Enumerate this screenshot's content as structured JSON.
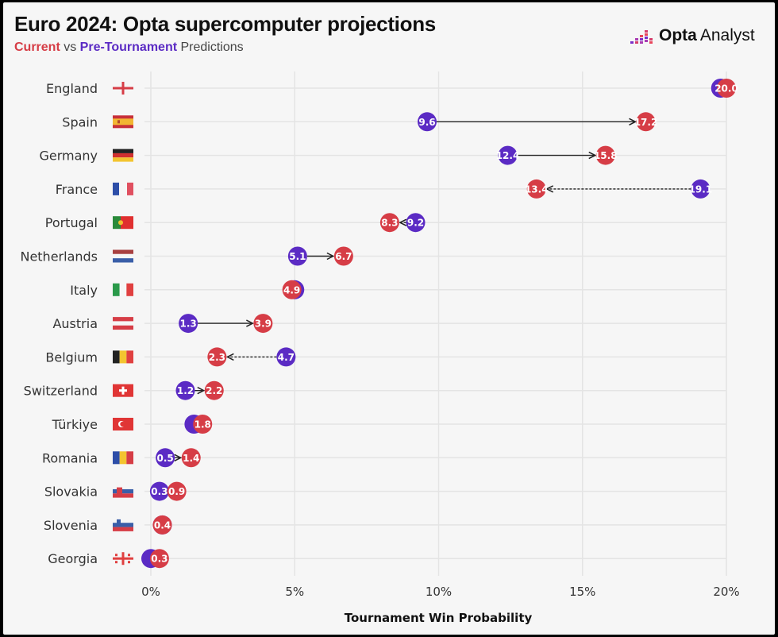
{
  "header": {
    "title": "Euro 2024: Opta supercomputer projections",
    "subtitle_current": "Current",
    "subtitle_vs": " vs ",
    "subtitle_pre": "Pre-Tournament",
    "subtitle_rest": " Predictions",
    "logo_text_bold": "Opta",
    "logo_text_light": "Analyst"
  },
  "colors": {
    "current": "#d63d46",
    "pre_tournament": "#5b2bc4",
    "arrow": "#222222",
    "grid": "#e4e4e4"
  },
  "chart_data": {
    "type": "dumbbell",
    "xlabel": "Tournament Win Probability",
    "xlim": [
      0,
      20
    ],
    "xticks": [
      0,
      5,
      10,
      15,
      20
    ],
    "xtick_labels": [
      "0%",
      "5%",
      "10%",
      "15%",
      "20%"
    ],
    "grid": "vertical",
    "arrow_style": {
      "increase": "solid",
      "decrease": "dashed"
    },
    "rows": [
      {
        "country": "England",
        "flag": "england",
        "current": 20.0,
        "pre": 19.8,
        "pre_labeled": false
      },
      {
        "country": "Spain",
        "flag": "spain",
        "current": 17.2,
        "pre": 9.6,
        "pre_labeled": true
      },
      {
        "country": "Germany",
        "flag": "germany",
        "current": 15.8,
        "pre": 12.4,
        "pre_labeled": true
      },
      {
        "country": "France",
        "flag": "france",
        "current": 13.4,
        "pre": 19.1,
        "pre_labeled": true
      },
      {
        "country": "Portugal",
        "flag": "portugal",
        "current": 8.3,
        "pre": 9.2,
        "pre_labeled": true
      },
      {
        "country": "Netherlands",
        "flag": "netherlands",
        "current": 6.7,
        "pre": 5.1,
        "pre_labeled": true
      },
      {
        "country": "Italy",
        "flag": "italy",
        "current": 4.9,
        "pre": 5.0,
        "pre_labeled": false
      },
      {
        "country": "Austria",
        "flag": "austria",
        "current": 3.9,
        "pre": 1.3,
        "pre_labeled": true
      },
      {
        "country": "Belgium",
        "flag": "belgium",
        "current": 2.3,
        "pre": 4.7,
        "pre_labeled": true
      },
      {
        "country": "Switzerland",
        "flag": "switzerland",
        "current": 2.2,
        "pre": 1.2,
        "pre_labeled": true
      },
      {
        "country": "Türkiye",
        "flag": "turkiye",
        "current": 1.8,
        "pre": 1.5,
        "pre_labeled": false
      },
      {
        "country": "Romania",
        "flag": "romania",
        "current": 1.4,
        "pre": 0.5,
        "pre_labeled": true
      },
      {
        "country": "Slovakia",
        "flag": "slovakia",
        "current": 0.9,
        "pre": 0.3,
        "pre_labeled": true
      },
      {
        "country": "Slovenia",
        "flag": "slovenia",
        "current": 0.4,
        "pre": 0.4,
        "pre_labeled": false
      },
      {
        "country": "Georgia",
        "flag": "georgia",
        "current": 0.3,
        "pre": 0.0,
        "pre_labeled": false
      }
    ]
  }
}
